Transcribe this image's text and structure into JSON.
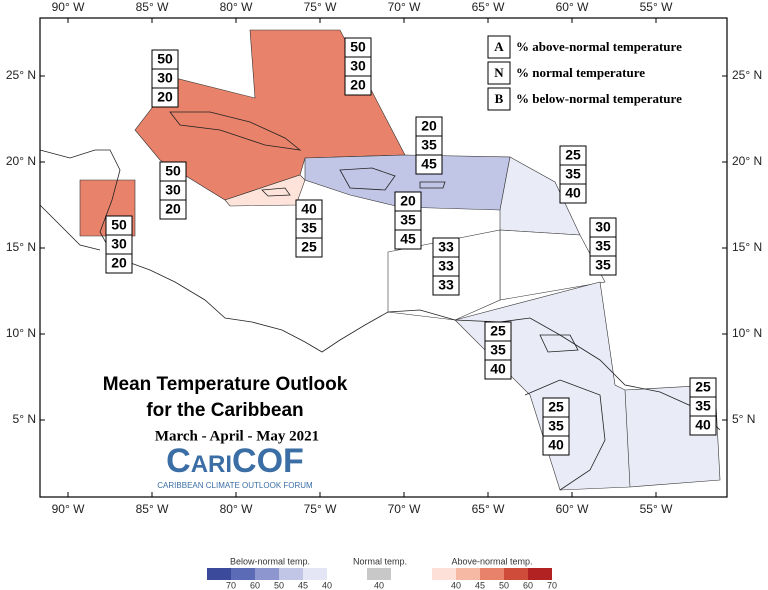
{
  "map": {
    "lon_labels": [
      "90° W",
      "85° W",
      "80° W",
      "75° W",
      "70° W",
      "65° W",
      "60° W",
      "55° W"
    ],
    "lat_labels": [
      "25° N",
      "20° N",
      "15° N",
      "10° N",
      "5° N"
    ],
    "key": [
      {
        "letter": "A",
        "text": "% above-normal temperature"
      },
      {
        "letter": "N",
        "text": "% normal temperature"
      },
      {
        "letter": "B",
        "text": "% below-normal temperature"
      }
    ],
    "title": [
      "Mean Temperature Outlook",
      "for the Caribbean"
    ],
    "period": "March - April - May 2021",
    "logo": "CariCOF",
    "logo_subtitle": "CARIBBEAN CLIMATE OUTLOOK FORUM",
    "regions": [
      [
        50,
        30,
        20
      ],
      [
        50,
        30,
        20
      ],
      [
        20,
        35,
        45
      ],
      [
        50,
        30,
        20
      ],
      [
        50,
        30,
        20
      ],
      [
        40,
        35,
        25
      ],
      [
        20,
        35,
        45
      ],
      [
        25,
        35,
        40
      ],
      [
        30,
        35,
        35
      ],
      [
        33,
        33,
        33
      ],
      [
        25,
        35,
        40
      ],
      [
        25,
        35,
        40
      ],
      [
        25,
        35,
        40
      ]
    ]
  },
  "scale": {
    "below": {
      "label": "Below-normal temp.",
      "ticks": [
        70,
        60,
        50,
        45,
        40
      ]
    },
    "normal": {
      "label": "Normal temp.",
      "ticks": [
        40
      ]
    },
    "above": {
      "label": "Above-normal temp.",
      "ticks": [
        40,
        45,
        50,
        60,
        70
      ]
    }
  }
}
